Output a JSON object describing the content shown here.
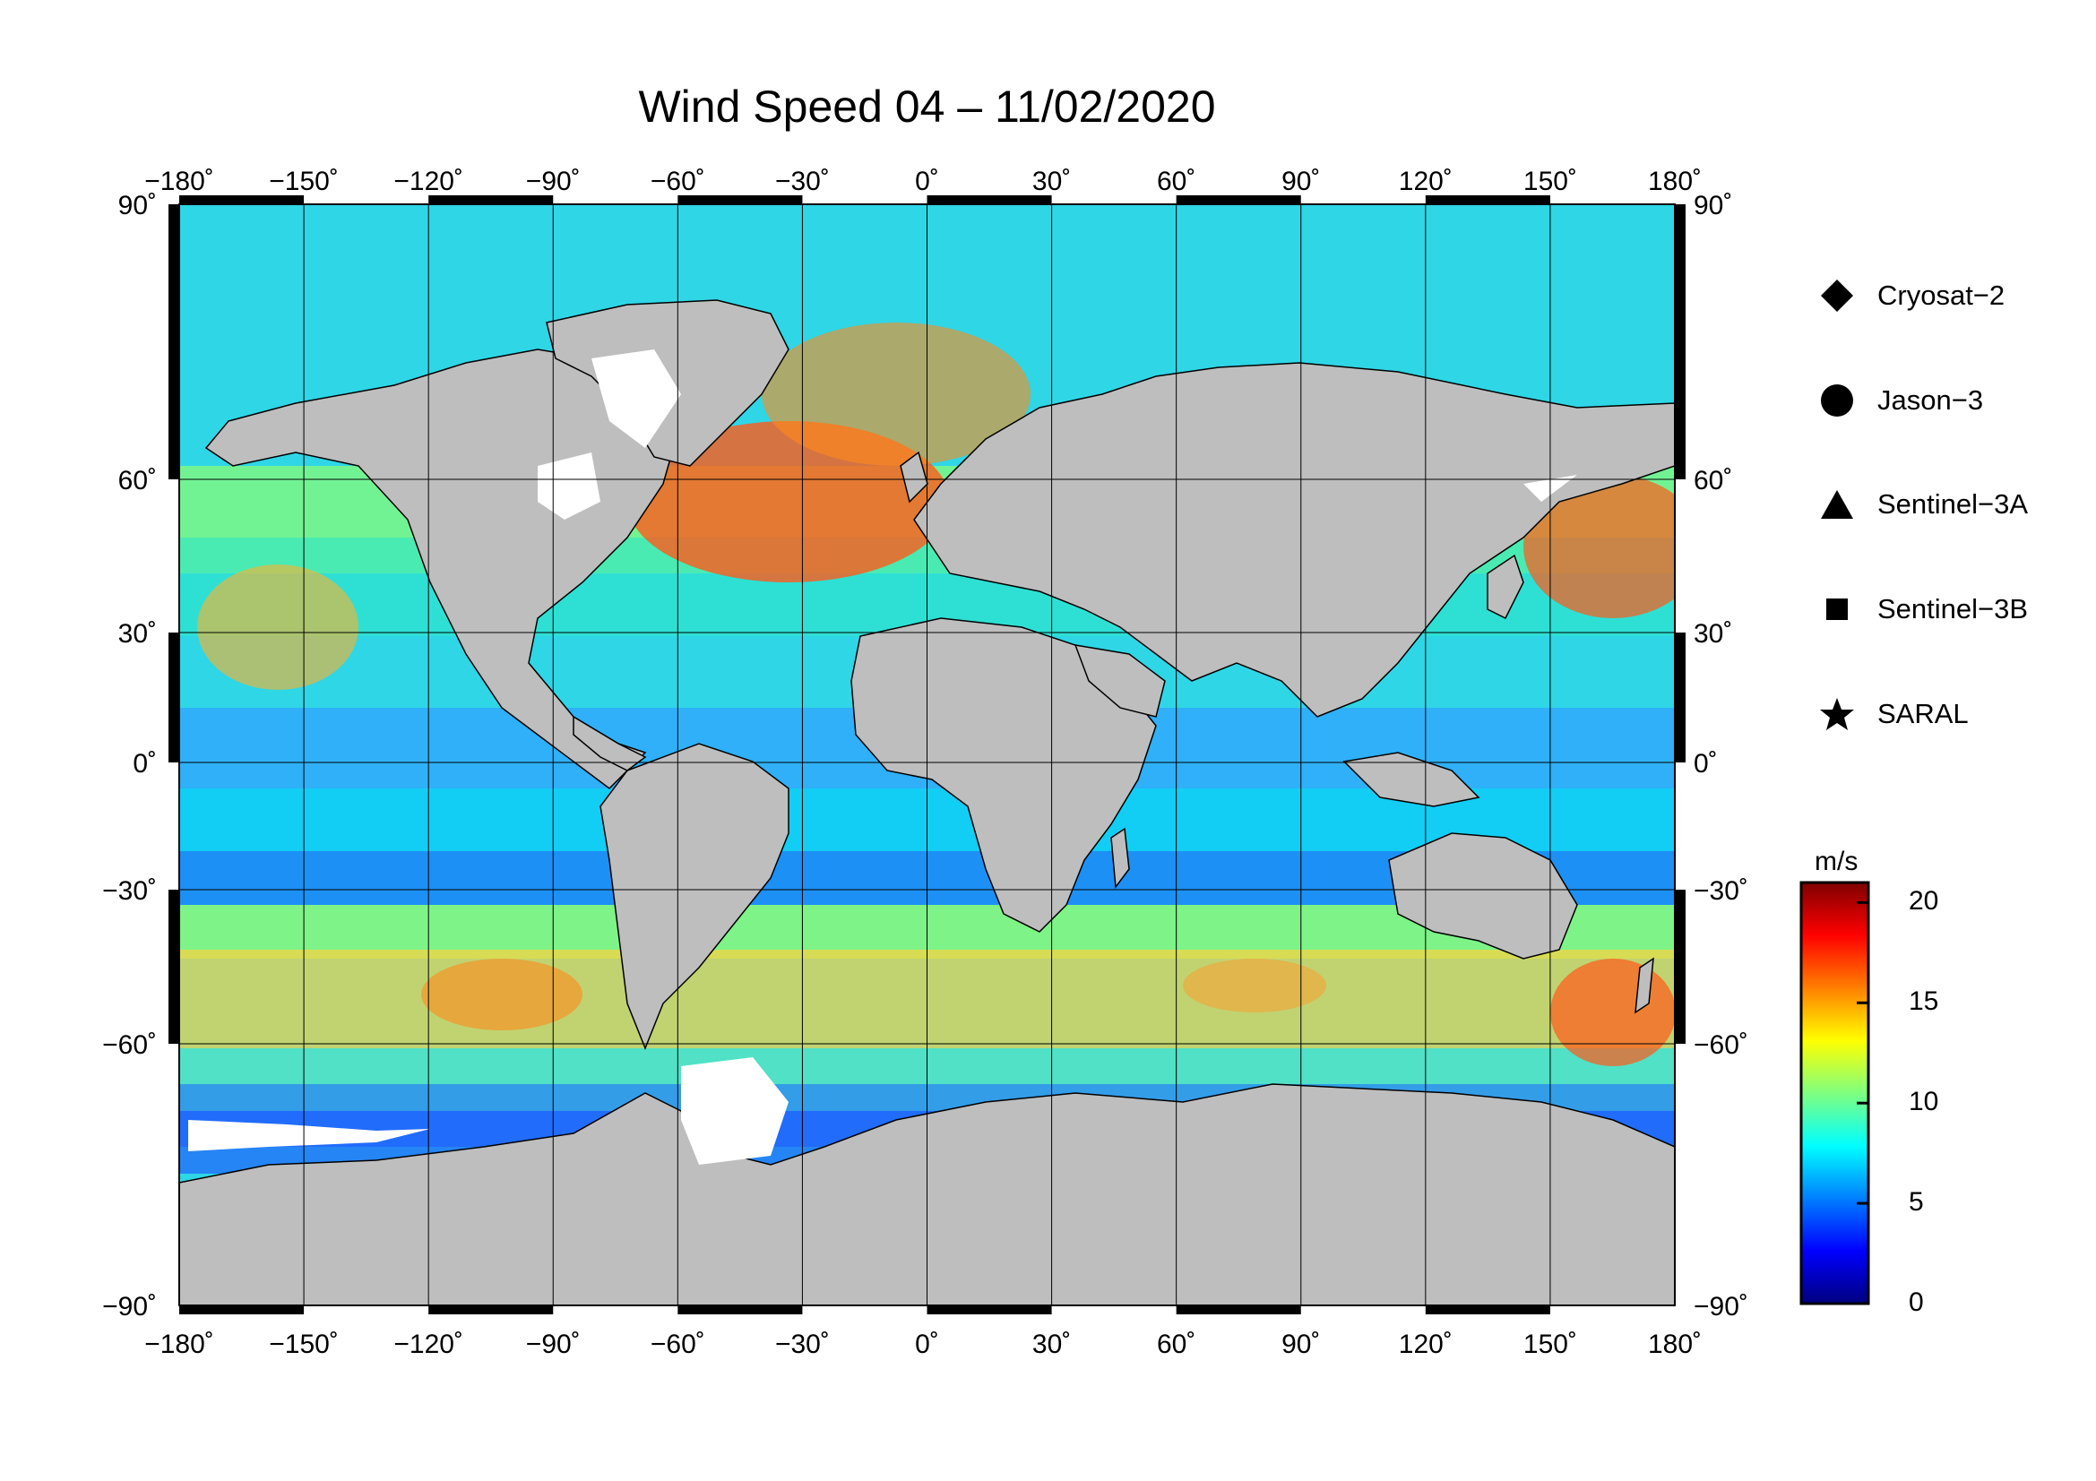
{
  "title": "Wind Speed 04 – 11/02/2020",
  "axes": {
    "lon_labels": [
      "−180˚",
      "−150˚",
      "−120˚",
      "−90˚",
      "−60˚",
      "−30˚",
      "0˚",
      "30˚",
      "60˚",
      "90˚",
      "120˚",
      "150˚",
      "180˚"
    ],
    "lat_labels": [
      "90˚",
      "60˚",
      "30˚",
      "0˚",
      "−30˚",
      "−60˚",
      "−90˚"
    ],
    "lon_values": [
      -180,
      -150,
      -120,
      -90,
      -60,
      -30,
      0,
      30,
      60,
      90,
      120,
      150,
      180
    ],
    "lat_values": [
      90,
      60,
      30,
      0,
      -30,
      -60,
      -90
    ]
  },
  "legend": {
    "items": [
      {
        "label": "Cryosat−2",
        "symbol": "diamond-icon"
      },
      {
        "label": "Jason−3",
        "symbol": "circle-icon"
      },
      {
        "label": "Sentinel−3A",
        "symbol": "triangle-icon"
      },
      {
        "label": "Sentinel−3B",
        "symbol": "square-icon"
      },
      {
        "label": "SARAL",
        "symbol": "star-icon"
      }
    ]
  },
  "colorbar": {
    "unit": "m/s",
    "ticks": [
      "20",
      "15",
      "10",
      "5",
      "0"
    ],
    "tick_values": [
      20,
      15,
      10,
      5,
      0
    ],
    "range": [
      0,
      21
    ],
    "colors": [
      "#00007f",
      "#0000ff",
      "#007fff",
      "#00ffff",
      "#7fff7f",
      "#ffff00",
      "#ff7f00",
      "#ff0000",
      "#7f0000"
    ]
  },
  "map_colors": {
    "land": "#bebebe",
    "ice": "#ffffff",
    "grid": "#000000"
  }
}
